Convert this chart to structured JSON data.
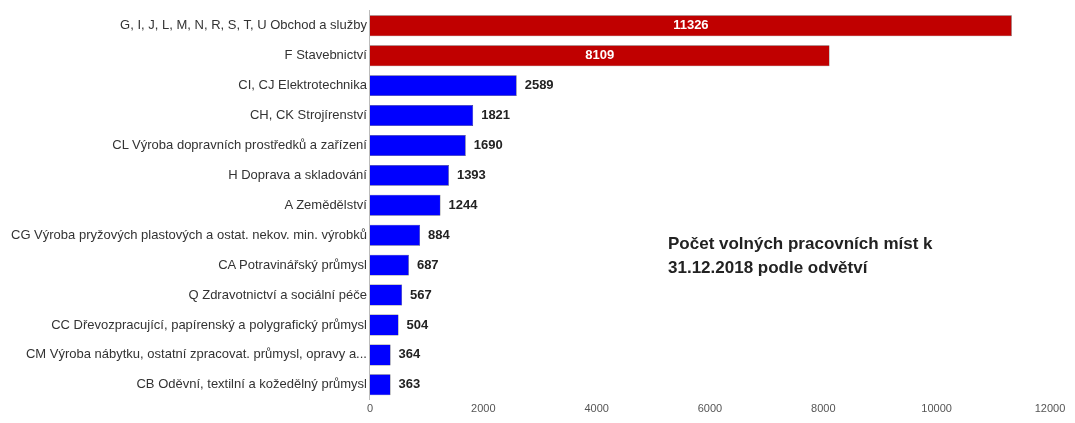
{
  "chart_data": {
    "type": "bar",
    "orientation": "horizontal",
    "title": "Počet volných pracovních míst k 31.12.2018 podle odvětví",
    "categories": [
      "G, I, J, L, M, N, R, S, T, U Obchod a služby",
      "F Stavebnictví",
      "CI, CJ Elektrotechnika",
      "CH, CK Strojírenství",
      "CL Výroba dopravních prostředků a zařízení",
      "H Doprava a skladování",
      "A Zemědělství",
      "CG Výroba pryžových plastových a ostat. nekov. min. výrobků",
      "CA Potravinářský průmysl",
      "Q Zdravotnictví a sociální péče",
      "CC Dřevozpracující, papírenský a polygrafický průmysl",
      "CM Výroba nábytku, ostatní zpracovat. průmysl, opravy a...",
      "CB Oděvní, textilní a kožedělný průmysl"
    ],
    "values": [
      11326,
      8109,
      2589,
      1821,
      1690,
      1393,
      1244,
      884,
      687,
      567,
      504,
      364,
      363
    ],
    "colors": [
      "#c00000",
      "#c00000",
      "#0000ff",
      "#0000ff",
      "#0000ff",
      "#0000ff",
      "#0000ff",
      "#0000ff",
      "#0000ff",
      "#0000ff",
      "#0000ff",
      "#0000ff",
      "#0000ff"
    ],
    "xlim": [
      0,
      12000
    ],
    "xticks": [
      0,
      2000,
      4000,
      6000,
      8000,
      10000,
      12000
    ],
    "data_labels": true,
    "grid": false,
    "legend": false
  }
}
